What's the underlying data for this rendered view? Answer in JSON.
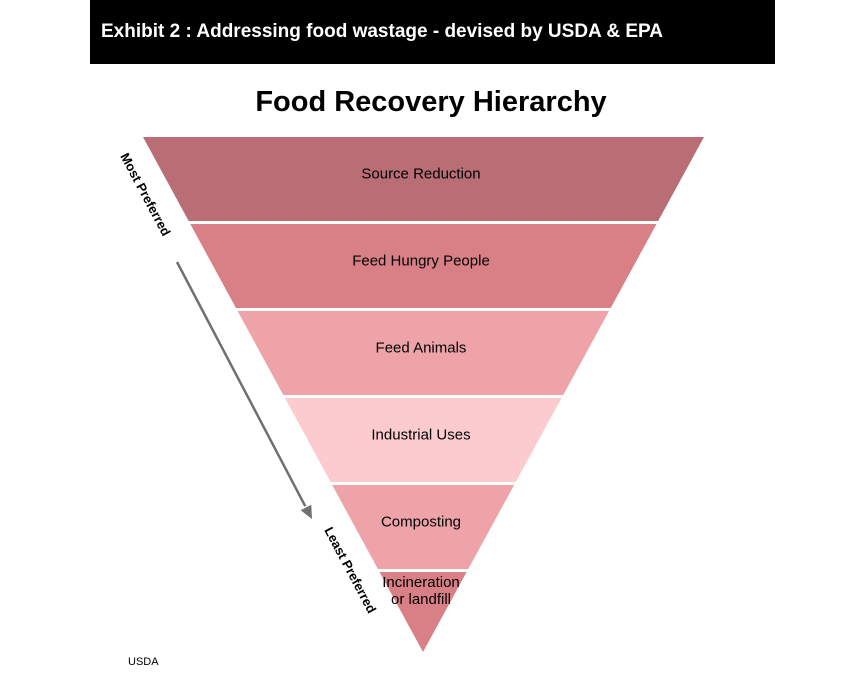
{
  "header": {
    "exhibit_title": "Exhibit 2 : Addressing food wastage - devised by USDA & EPA"
  },
  "diagram": {
    "title": "Food Recovery Hierarchy",
    "levels": [
      {
        "label_lines": [
          "Source Reduction"
        ],
        "color": "#b96d74"
      },
      {
        "label_lines": [
          "Feed Hungry  People"
        ],
        "color": "#d97f86"
      },
      {
        "label_lines": [
          "Feed Animals"
        ],
        "color": "#eea3a8"
      },
      {
        "label_lines": [
          "Industrial  Uses"
        ],
        "color": "#fccbcf"
      },
      {
        "label_lines": [
          "Composting"
        ],
        "color": "#eea3a8"
      },
      {
        "label_lines": [
          "Incineration",
          "or landfill"
        ],
        "color": "#d97f86"
      }
    ],
    "most_preferred_label": "Most Preferred",
    "least_preferred_label": "Least Preferred",
    "arrow_color": "#707070"
  },
  "footer": {
    "source": "USDA"
  }
}
